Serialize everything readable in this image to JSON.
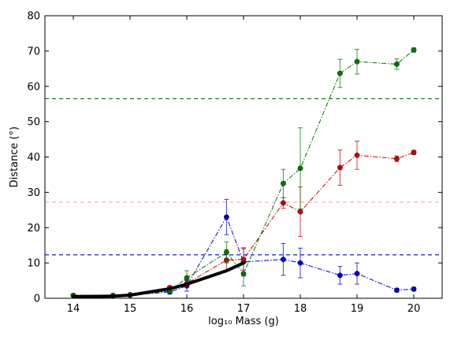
{
  "chart_data": {
    "type": "line",
    "xlabel": "log₁₀ Mass (g)",
    "ylabel": "Distance (°)",
    "xlim": [
      13.5,
      20.5
    ],
    "ylim": [
      0,
      80
    ],
    "xticks": [
      "14",
      "15",
      "16",
      "17",
      "18",
      "19",
      "20"
    ],
    "yticks": [
      "0",
      "10",
      "20",
      "30",
      "40",
      "50",
      "60",
      "70",
      "80"
    ],
    "grid": false,
    "legend": "none",
    "series": [
      {
        "color": "#0000cc",
        "style": "dash-dot",
        "points": [
          {
            "x": 14.0,
            "y": 0.8,
            "err": 0.3
          },
          {
            "x": 14.7,
            "y": 0.8,
            "err": 0.3
          },
          {
            "x": 15.0,
            "y": 0.9,
            "err": 0.3
          },
          {
            "x": 15.7,
            "y": 1.8,
            "err": 0.6
          },
          {
            "x": 16.0,
            "y": 3.5,
            "err": 1.5
          },
          {
            "x": 16.7,
            "y": 23.0,
            "err": 5.0
          },
          {
            "x": 17.0,
            "y": 10.3,
            "err": 4.0
          },
          {
            "x": 17.7,
            "y": 11.0,
            "err": 4.5
          },
          {
            "x": 18.0,
            "y": 10.0,
            "err": 4.2
          },
          {
            "x": 18.7,
            "y": 6.5,
            "err": 2.5
          },
          {
            "x": 19.0,
            "y": 7.0,
            "err": 3.0
          },
          {
            "x": 19.7,
            "y": 2.3,
            "err": 0.5
          },
          {
            "x": 20.0,
            "y": 2.6,
            "err": 0.5
          }
        ]
      },
      {
        "color": "#cc0000",
        "style": "dash-dot",
        "points": [
          {
            "x": 14.0,
            "y": 0.8,
            "err": 0.2
          },
          {
            "x": 14.7,
            "y": 0.8,
            "err": 0.2
          },
          {
            "x": 15.0,
            "y": 1.0,
            "err": 0.3
          },
          {
            "x": 15.7,
            "y": 3.0,
            "err": 0.5
          },
          {
            "x": 16.0,
            "y": 4.2,
            "err": 1.0
          },
          {
            "x": 16.7,
            "y": 10.8,
            "err": 3.0
          },
          {
            "x": 17.0,
            "y": 11.0,
            "err": 3.0
          },
          {
            "x": 17.7,
            "y": 27.0,
            "err": 1.5
          },
          {
            "x": 18.0,
            "y": 24.5,
            "err": 7.0
          },
          {
            "x": 18.7,
            "y": 37.0,
            "err": 5.0
          },
          {
            "x": 19.0,
            "y": 40.5,
            "err": 4.0
          },
          {
            "x": 19.7,
            "y": 39.5,
            "err": 0.8
          },
          {
            "x": 20.0,
            "y": 41.3,
            "err": 0.6
          }
        ]
      },
      {
        "color": "#007700",
        "style": "dash-dot",
        "points": [
          {
            "x": 14.0,
            "y": 0.8,
            "err": 0.2
          },
          {
            "x": 14.7,
            "y": 0.8,
            "err": 0.2
          },
          {
            "x": 15.0,
            "y": 1.0,
            "err": 0.3
          },
          {
            "x": 15.7,
            "y": 2.0,
            "err": 0.5
          },
          {
            "x": 16.0,
            "y": 5.8,
            "err": 2.0
          },
          {
            "x": 16.7,
            "y": 13.0,
            "err": 3.0
          },
          {
            "x": 17.0,
            "y": 7.0,
            "err": 3.5
          },
          {
            "x": 17.7,
            "y": 32.5,
            "err": 4.0
          },
          {
            "x": 18.0,
            "y": 36.8,
            "err": 11.5
          },
          {
            "x": 18.7,
            "y": 63.7,
            "err": 4.0
          },
          {
            "x": 19.0,
            "y": 67.0,
            "err": 3.5
          },
          {
            "x": 19.7,
            "y": 66.3,
            "err": 1.5
          },
          {
            "x": 20.0,
            "y": 70.3,
            "err": 0.6
          }
        ]
      }
    ],
    "reference_curve": {
      "color": "#000000",
      "x": [
        14.0,
        14.7,
        15.0,
        15.7,
        16.0,
        16.7,
        17.0
      ],
      "y": [
        0.5,
        0.6,
        0.9,
        2.7,
        4.0,
        7.8,
        10.0
      ]
    },
    "hlines": [
      {
        "y": 56.5,
        "color": "#007700"
      },
      {
        "y": 27.2,
        "color": "#f4aaaa"
      },
      {
        "y": 12.3,
        "color": "#0000cc"
      }
    ]
  }
}
